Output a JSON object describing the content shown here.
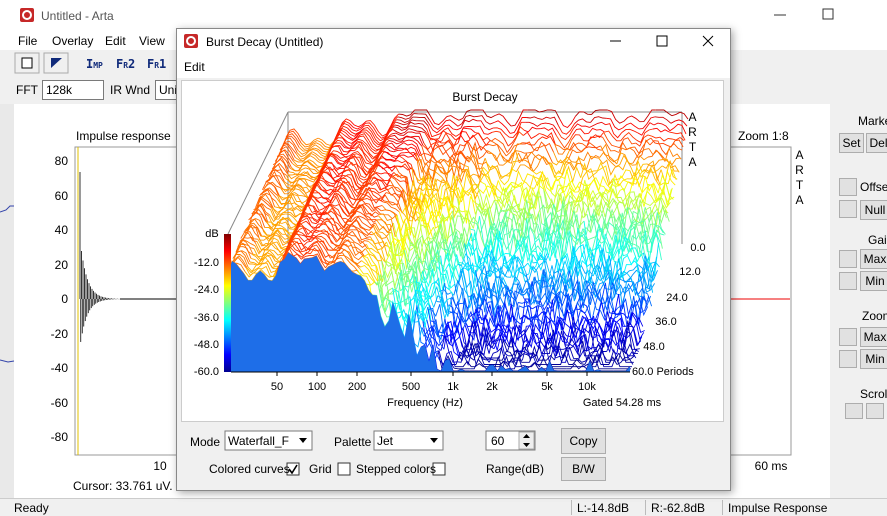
{
  "window": {
    "title": "Untitled - Arta",
    "menu": [
      "File",
      "Overlay",
      "Edit",
      "View"
    ],
    "toolbar": [
      "Imp",
      "Fr2",
      "Fr1"
    ],
    "fft_label": "FFT",
    "fft_value": "128k",
    "ir_wnd_label": "IR Wnd",
    "ir_wnd_value": "Unif"
  },
  "impulse": {
    "title": "Impulse response",
    "zoom": "Zoom 1:8",
    "logo": "ARTA",
    "y_labels": [
      "80",
      "60",
      "40",
      "20",
      "0",
      "-20",
      "-40",
      "-60",
      "-80"
    ],
    "x_labels": [
      "10",
      "60 ms"
    ],
    "cursor": "Cursor: 33.761 uV."
  },
  "side_panel": {
    "markers": "Marke",
    "set": "Set",
    "del": "Del",
    "offset": "Offse",
    "null": "Null",
    "gain": "Gain",
    "gain_max": "Max",
    "gain_min": "Min",
    "zoom": "Zoom",
    "zoom_max": "Max",
    "zoom_min": "Min",
    "scroll": "Scroll"
  },
  "status": {
    "ready": "Ready",
    "left": "L:-14.8dB",
    "right": "R:-62.8dB",
    "mode": "Impulse Response"
  },
  "dialog": {
    "title": "Burst Decay  (Untitled)",
    "menu": "Edit",
    "plot": {
      "title": "Burst Decay",
      "logo": "ARTA",
      "y_unit": "dB",
      "y_labels": [
        "-12.0",
        "-24.0",
        "-36.0",
        "-48.0",
        "-60.0"
      ],
      "x_labels": [
        "50",
        "100",
        "200",
        "500",
        "1k",
        "2k",
        "5k",
        "10k"
      ],
      "x_title": "Frequency (Hz)",
      "gated": "Gated 54.28 ms",
      "depth_labels": [
        "0.0",
        "12.0",
        "24.0",
        "36.0",
        "48.0",
        "60.0 Periods"
      ]
    },
    "controls": {
      "mode_label": "Mode",
      "mode_value": "Waterfall_F",
      "palette_label": "Palette",
      "palette_value": "Jet",
      "range_value": "60",
      "copy": "Copy",
      "colored_curves": "Colored curves",
      "grid": "Grid",
      "stepped_colors": "Stepped colors",
      "range_label": "Range(dB)",
      "bw": "B/W"
    }
  }
}
